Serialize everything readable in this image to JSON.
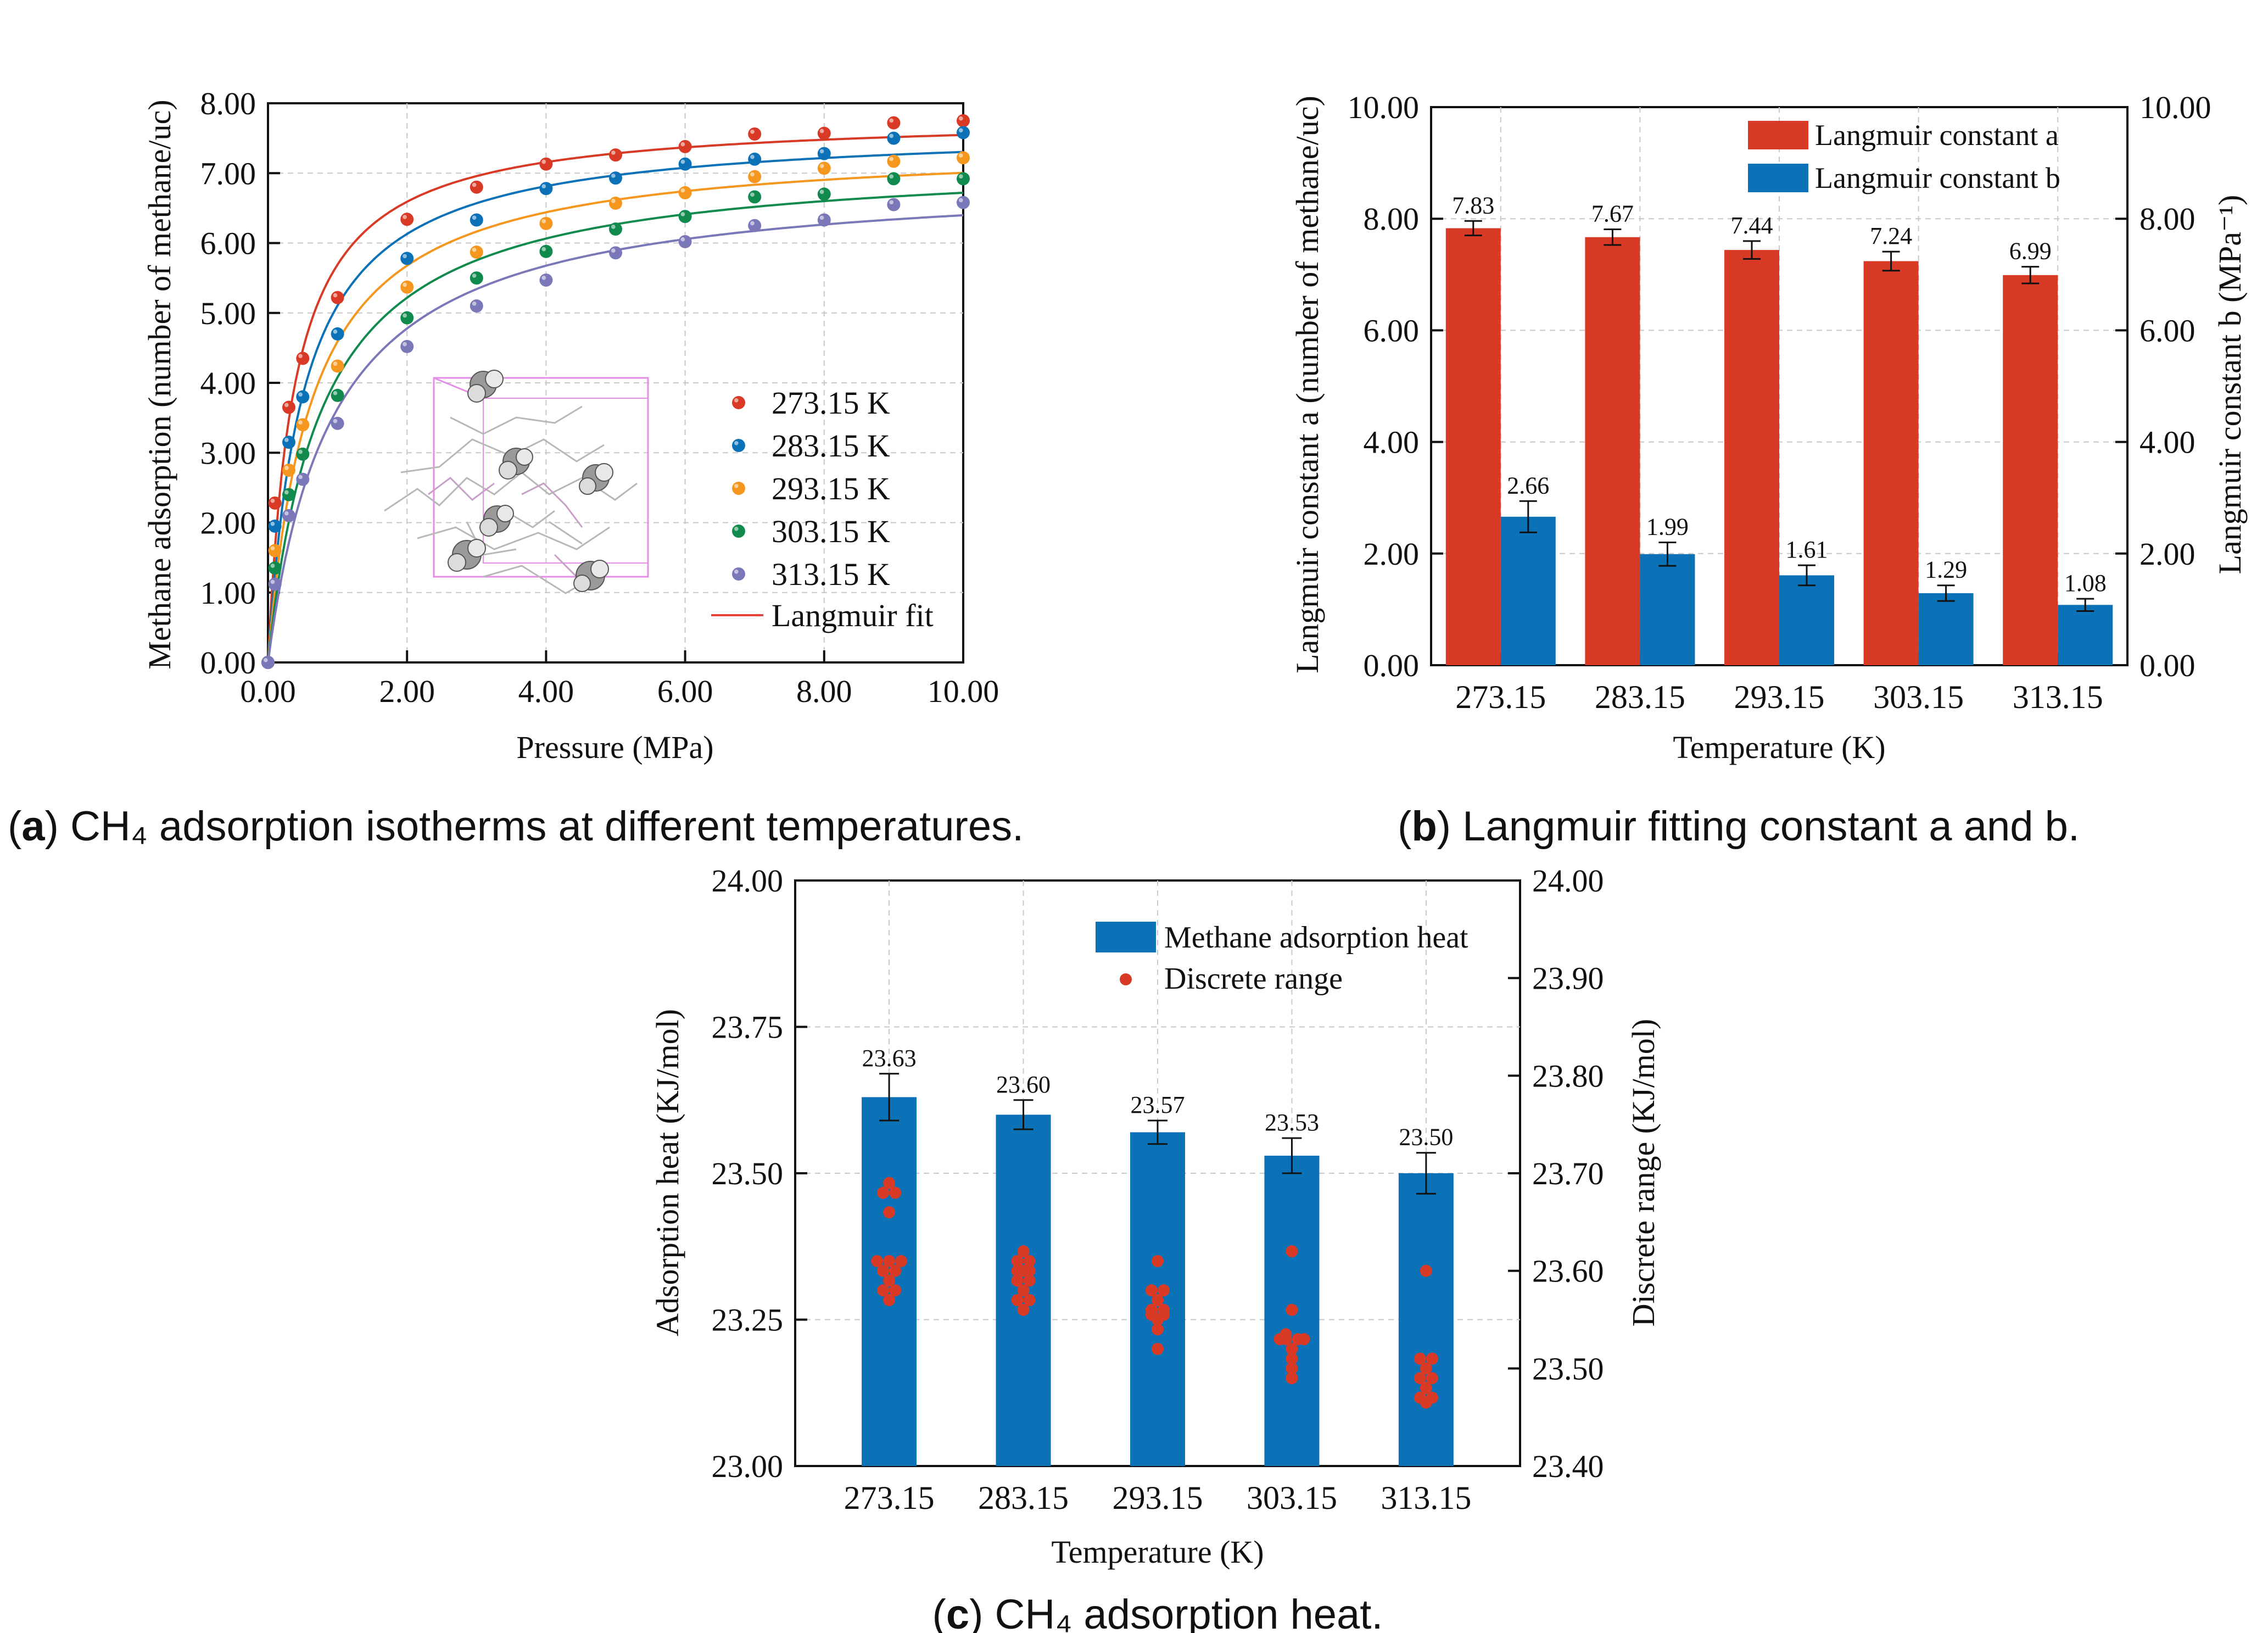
{
  "colors": {
    "red": "#d93a26",
    "blue": "#0b72b8",
    "orange": "#f5971f",
    "green": "#118a4e",
    "purple": "#7a78b8",
    "grid": "#c8c8c8",
    "fit": "#e8403a"
  },
  "chart_data": [
    {
      "type": "scatter",
      "panel": "a",
      "xlabel": "Pressure (MPa)",
      "ylabel": "Methane adsorption (number of methane/uc)",
      "xlim": [
        0,
        10
      ],
      "ylim": [
        0,
        8
      ],
      "x_ticks": [
        "0.00",
        "2.00",
        "4.00",
        "6.00",
        "8.00",
        "10.00"
      ],
      "y_ticks": [
        "0.00",
        "1.00",
        "2.00",
        "3.00",
        "4.00",
        "5.00",
        "6.00",
        "7.00",
        "8.00"
      ],
      "legend": {
        "placement": "bottom-right",
        "fit_label": "Langmuir fit"
      },
      "x": [
        0,
        0.1,
        0.3,
        0.5,
        1,
        2,
        3,
        4,
        5,
        6,
        7,
        8,
        9,
        10
      ],
      "series": [
        {
          "name": "273.15 K",
          "color": "red",
          "values": [
            0,
            2.28,
            3.65,
            4.35,
            5.22,
            6.34,
            6.8,
            7.13,
            7.26,
            7.38,
            7.56,
            7.57,
            7.72,
            7.75
          ],
          "fit": {
            "a": 7.83,
            "b": 2.66
          }
        },
        {
          "name": "283.15 K",
          "color": "blue",
          "values": [
            0,
            1.95,
            3.15,
            3.8,
            4.7,
            5.78,
            6.33,
            6.78,
            6.93,
            7.13,
            7.2,
            7.28,
            7.5,
            7.58
          ],
          "fit": {
            "a": 7.67,
            "b": 1.99
          }
        },
        {
          "name": "293.15 K",
          "color": "orange",
          "values": [
            0,
            1.6,
            2.75,
            3.4,
            4.24,
            5.37,
            5.87,
            6.28,
            6.57,
            6.72,
            6.95,
            7.07,
            7.17,
            7.22
          ],
          "fit": {
            "a": 7.44,
            "b": 1.61
          }
        },
        {
          "name": "303.15 K",
          "color": "green",
          "values": [
            0,
            1.35,
            2.4,
            2.98,
            3.82,
            4.93,
            5.5,
            5.88,
            6.2,
            6.38,
            6.66,
            6.7,
            6.92,
            6.92
          ],
          "fit": {
            "a": 7.24,
            "b": 1.29
          }
        },
        {
          "name": "313.15 K",
          "color": "purple",
          "values": [
            0,
            1.12,
            2.1,
            2.62,
            3.42,
            4.52,
            5.1,
            5.47,
            5.86,
            6.02,
            6.25,
            6.33,
            6.55,
            6.58
          ],
          "fit": {
            "a": 6.99,
            "b": 1.08
          }
        }
      ],
      "caption_prefix": "(",
      "caption_label": "a",
      "caption_text": ") CH₄ adsorption isotherms at different temperatures."
    },
    {
      "type": "bar",
      "panel": "b",
      "xlabel": "Temperature (K)",
      "ylabel_left": "Langmuir constant a (number of methane/uc)",
      "ylabel_right": "Langmuir constant b (MPa⁻¹)",
      "ylim": [
        0,
        10
      ],
      "y_ticks": [
        "0.00",
        "2.00",
        "4.00",
        "6.00",
        "8.00",
        "10.00"
      ],
      "categories": [
        "273.15",
        "283.15",
        "293.15",
        "303.15",
        "313.15"
      ],
      "series": [
        {
          "name": "Langmuir constant a",
          "color": "red",
          "values": [
            7.83,
            7.67,
            7.44,
            7.24,
            6.99
          ],
          "errors": [
            0.13,
            0.14,
            0.16,
            0.17,
            0.15
          ],
          "labels": [
            "7.83",
            "7.67",
            "7.44",
            "7.24",
            "6.99"
          ]
        },
        {
          "name": "Langmuir constant b",
          "color": "blue",
          "values": [
            2.66,
            1.99,
            1.61,
            1.29,
            1.08
          ],
          "errors": [
            0.28,
            0.21,
            0.18,
            0.14,
            0.11
          ],
          "labels": [
            "2.66",
            "1.99",
            "1.61",
            "1.29",
            "1.08"
          ]
        }
      ],
      "legend": {
        "placement": "top-right"
      },
      "caption_prefix": "(",
      "caption_label": "b",
      "caption_text": ") Langmuir fitting constant a and b."
    },
    {
      "type": "bar",
      "panel": "c",
      "xlabel": "Temperature (K)",
      "ylabel_left": "Adsorption heat (KJ/mol)",
      "ylabel_right": "Discrete range (KJ/mol)",
      "ylim_left": [
        23.0,
        24.0
      ],
      "ylim_right": [
        23.4,
        24.0
      ],
      "y_ticks_left": [
        "23.00",
        "23.25",
        "23.50",
        "23.75",
        "24.00"
      ],
      "y_ticks_right": [
        "23.40",
        "23.50",
        "23.60",
        "23.70",
        "23.80",
        "23.90",
        "24.00"
      ],
      "categories": [
        "273.15",
        "283.15",
        "293.15",
        "303.15",
        "313.15"
      ],
      "series": [
        {
          "name": "Methane adsorption heat",
          "color": "blue",
          "values": [
            23.63,
            23.6,
            23.57,
            23.53,
            23.5
          ],
          "errors": [
            0.04,
            0.025,
            0.02,
            0.03,
            0.035
          ],
          "labels": [
            "23.63",
            "23.60",
            "23.57",
            "23.53",
            "23.50"
          ]
        }
      ],
      "discrete": {
        "name": "Discrete range",
        "color": "red",
        "points": [
          [
            [
              -1,
              23.61
            ],
            [
              0,
              23.61
            ],
            [
              1,
              23.61
            ],
            [
              0,
              23.66
            ],
            [
              -0.5,
              23.68
            ],
            [
              0.5,
              23.68
            ],
            [
              0,
              23.69
            ],
            [
              -0.5,
              23.6
            ],
            [
              0.5,
              23.6
            ],
            [
              0,
              23.59
            ],
            [
              -0.5,
              23.58
            ],
            [
              0,
              23.57
            ],
            [
              0.5,
              23.58
            ]
          ],
          [
            [
              0,
              23.62
            ],
            [
              -0.5,
              23.61
            ],
            [
              0.5,
              23.61
            ],
            [
              0,
              23.6
            ],
            [
              -0.5,
              23.59
            ],
            [
              0.5,
              23.59
            ],
            [
              0,
              23.58
            ],
            [
              -0.5,
              23.57
            ],
            [
              0.5,
              23.57
            ],
            [
              0,
              23.56
            ],
            [
              0.5,
              23.6
            ],
            [
              -0.5,
              23.6
            ]
          ],
          [
            [
              0,
              23.61
            ],
            [
              -0.5,
              23.58
            ],
            [
              0.5,
              23.58
            ],
            [
              0,
              23.57
            ],
            [
              -0.5,
              23.56
            ],
            [
              0.5,
              23.56
            ],
            [
              0,
              23.55
            ],
            [
              0,
              23.54
            ],
            [
              0,
              23.52
            ],
            [
              0.5,
              23.555
            ],
            [
              -0.5,
              23.555
            ]
          ],
          [
            [
              0,
              23.62
            ],
            [
              0,
              23.56
            ],
            [
              -0.5,
              23.53
            ],
            [
              0.5,
              23.53
            ],
            [
              -1,
              23.53
            ],
            [
              1,
              23.53
            ],
            [
              0,
              23.52
            ],
            [
              0,
              23.51
            ],
            [
              0,
              23.5
            ],
            [
              0,
              23.49
            ],
            [
              -0.5,
              23.535
            ]
          ],
          [
            [
              0,
              23.6
            ],
            [
              -0.5,
              23.51
            ],
            [
              0.5,
              23.51
            ],
            [
              0,
              23.5
            ],
            [
              -0.5,
              23.49
            ],
            [
              0.5,
              23.49
            ],
            [
              0,
              23.48
            ],
            [
              -0.5,
              23.47
            ],
            [
              0.5,
              23.47
            ],
            [
              0,
              23.465
            ]
          ]
        ]
      },
      "legend": {
        "placement": "top-right"
      },
      "caption_prefix": "(",
      "caption_label": "c",
      "caption_text": ") CH₄ adsorption heat."
    }
  ]
}
